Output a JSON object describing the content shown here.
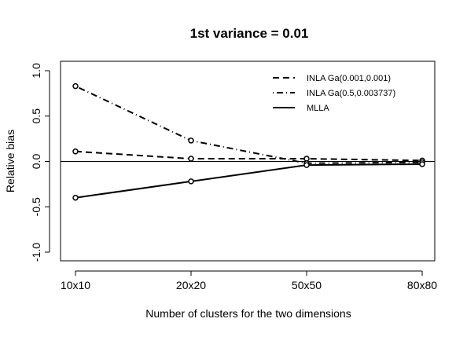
{
  "chart_data": {
    "type": "line",
    "title": "1st variance = 0.01",
    "xlabel": "Number of clusters for the two dimensions",
    "ylabel": "Relative bias",
    "categories": [
      "10x10",
      "20x20",
      "50x50",
      "80x80"
    ],
    "ylim": [
      -1.0,
      1.0
    ],
    "yticks": [
      "-1.0",
      "-0.5",
      "0.0",
      "0.5",
      "1.0"
    ],
    "reference_line": 0,
    "grid": false,
    "legend_position": "top-right",
    "series": [
      {
        "name": "INLA Ga(0.001,0.001)",
        "line_style": "dashed",
        "values": [
          0.11,
          0.03,
          0.03,
          0.01
        ]
      },
      {
        "name": "INLA Ga(0.5,0.003737)",
        "line_style": "dot-dash",
        "values": [
          0.83,
          0.23,
          -0.02,
          -0.01
        ]
      },
      {
        "name": "MLLA",
        "line_style": "solid",
        "values": [
          -0.4,
          -0.22,
          -0.04,
          -0.03
        ]
      }
    ]
  }
}
